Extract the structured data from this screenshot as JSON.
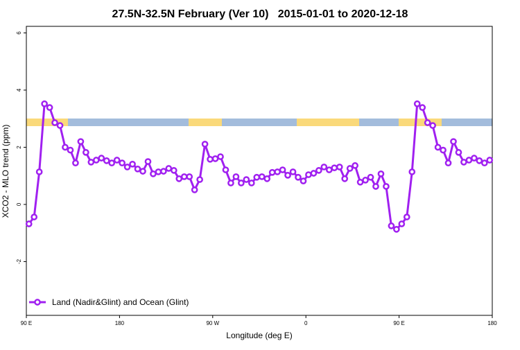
{
  "chart_data": {
    "type": "line",
    "title": "27.5N-32.5N February (Ver 10)   2015-01-01 to 2020-12-18",
    "x_label": "Longitude (deg E)",
    "y_label": "XCO2 - MLO trend (ppm)",
    "xlim": [
      90,
      540
    ],
    "ylim": [
      -3.88,
      6.23
    ],
    "xticks": [
      {
        "value": 90,
        "label": "90 E"
      },
      180,
      {
        "value": 270,
        "label": "90 W"
      },
      {
        "value": 360,
        "label": "0"
      },
      {
        "value": 450,
        "label": "90 E"
      },
      {
        "value": 540,
        "label": "180"
      }
    ],
    "yticks": [
      -2,
      0,
      2,
      4,
      6
    ],
    "legend": "bottom-left",
    "x": [
      92.5,
      97.5,
      102.5,
      107.5,
      112.5,
      117.5,
      122.5,
      127.5,
      132.5,
      137.5,
      142.5,
      147.5,
      152.5,
      157.5,
      162.5,
      167.5,
      172.5,
      177.5,
      182.5,
      187.5,
      192.5,
      197.5,
      202.5,
      207.5,
      212.5,
      217.5,
      222.5,
      227.5,
      232.5,
      237.5,
      242.5,
      247.5,
      252.5,
      257.5,
      262.5,
      267.5,
      272.5,
      277.5,
      282.5,
      287.5,
      292.5,
      297.5,
      302.5,
      307.5,
      312.5,
      317.5,
      322.5,
      327.5,
      332.5,
      337.5,
      342.5,
      347.5,
      352.5,
      357.5,
      362.5,
      367.5,
      372.5,
      377.5,
      382.5,
      387.5,
      392.5,
      397.5,
      402.5,
      407.5,
      412.5,
      417.5,
      422.5,
      427.5,
      432.5,
      437.5,
      442.5,
      447.5,
      452.5,
      457.5,
      462.5,
      467.5,
      472.5,
      477.5,
      482.5,
      487.5,
      492.5,
      497.5,
      502.5,
      507.5,
      512.5,
      517.5,
      522.5,
      527.5,
      532.5,
      537.5
    ],
    "series": [
      {
        "name": "Land (Nadir&Glint) and Ocean (Glint)",
        "color": "#a020f0",
        "values": [
          -0.68,
          -0.44,
          1.14,
          3.52,
          3.39,
          2.86,
          2.76,
          2.0,
          1.9,
          1.45,
          2.2,
          1.82,
          1.48,
          1.55,
          1.62,
          1.53,
          1.45,
          1.55,
          1.45,
          1.31,
          1.41,
          1.24,
          1.16,
          1.5,
          1.07,
          1.14,
          1.16,
          1.26,
          1.19,
          0.9,
          0.97,
          0.97,
          0.51,
          0.87,
          2.11,
          1.58,
          1.6,
          1.67,
          1.21,
          0.75,
          0.97,
          0.75,
          0.87,
          0.75,
          0.95,
          0.97,
          0.9,
          1.12,
          1.14,
          1.21,
          1.02,
          1.14,
          0.95,
          0.82,
          1.04,
          1.09,
          1.19,
          1.31,
          1.21,
          1.28,
          1.31,
          0.9,
          1.26,
          1.36,
          0.78,
          0.85,
          0.95,
          0.63,
          1.07,
          0.63,
          -0.75,
          -0.87,
          -0.68,
          -0.44,
          1.14,
          3.52,
          3.39,
          2.86,
          2.76,
          2.0,
          1.9,
          1.45,
          2.2,
          1.82,
          1.48,
          1.55,
          1.62,
          1.53,
          1.45,
          1.55
        ]
      }
    ]
  }
}
